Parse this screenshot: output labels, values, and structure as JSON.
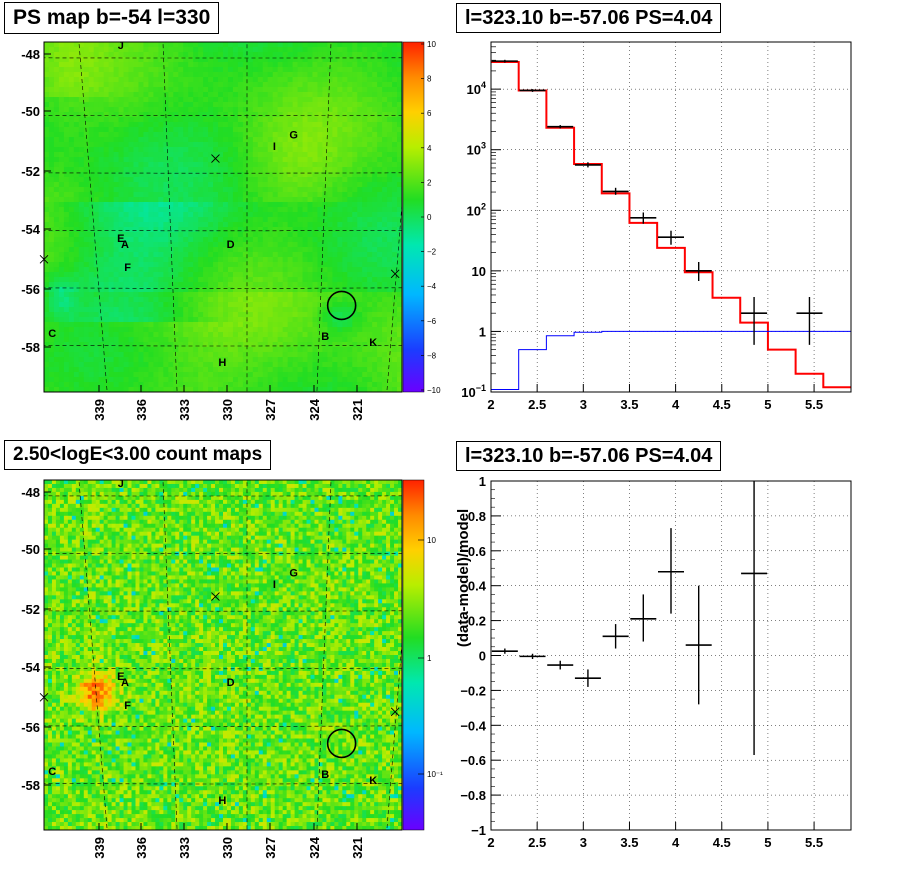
{
  "titles": {
    "map_top": "PS map b=-54 l=330",
    "spectrum_top": "l=323.10 b=-57.06 PS=4.04",
    "map_bottom": "2.50<logE<3.00 count maps",
    "spectrum_bottom": "l=323.10 b=-57.06 PS=4.04"
  },
  "maps": {
    "lat_ticks": [
      "-48",
      "-50",
      "-52",
      "-54",
      "-56",
      "-58"
    ],
    "lon_ticks": [
      "339",
      "336",
      "333",
      "330",
      "327",
      "324",
      "321"
    ],
    "source_labels": [
      {
        "name": "J",
        "l": 339.2,
        "b": -47.9
      },
      {
        "name": "I",
        "l": 328.0,
        "b": -51.4
      },
      {
        "name": "G",
        "l": 326.6,
        "b": -51.0
      },
      {
        "name": "E",
        "l": 339.2,
        "b": -54.6
      },
      {
        "name": "A",
        "l": 338.9,
        "b": -54.8
      },
      {
        "name": "D",
        "l": 331.2,
        "b": -54.8
      },
      {
        "name": "F",
        "l": 338.7,
        "b": -55.6
      },
      {
        "name": "C",
        "l": 344.2,
        "b": -57.9
      },
      {
        "name": "B",
        "l": 324.3,
        "b": -58.0
      },
      {
        "name": "K",
        "l": 320.8,
        "b": -58.2
      },
      {
        "name": "H",
        "l": 331.8,
        "b": -58.9
      }
    ],
    "crosses": [
      {
        "l": 332.3,
        "b": -51.7
      },
      {
        "l": 344.8,
        "b": -55.2
      },
      {
        "l": 319.2,
        "b": -55.7
      }
    ],
    "circle": {
      "l": 323.1,
      "b": -56.8
    },
    "top_colorbar": {
      "scale": "linear",
      "range": [
        -10,
        10
      ],
      "ticks": [
        "10",
        "8",
        "6",
        "4",
        "2",
        "0",
        "−2",
        "−4",
        "−6",
        "−8",
        "−10"
      ]
    },
    "bottom_colorbar": {
      "scale": "log",
      "ticks": [
        "10",
        "1",
        "10⁻¹"
      ]
    }
  },
  "chart_data": [
    {
      "type": "line",
      "title": "l=323.10 b=-57.06 PS=4.04",
      "yscale": "log",
      "xlim": [
        2,
        5.9
      ],
      "ylim": [
        0.1,
        60000
      ],
      "x_ticks": [
        "2",
        "2.5",
        "3",
        "3.5",
        "4",
        "4.5",
        "5",
        "5.5"
      ],
      "y_ticks": [
        {
          "value": 0.1,
          "base": "10",
          "exp": "−1"
        },
        {
          "value": 1,
          "label": "1"
        },
        {
          "value": 10,
          "label": "10"
        },
        {
          "value": 100,
          "base": "10",
          "exp": "2"
        },
        {
          "value": 1000,
          "base": "10",
          "exp": "3"
        },
        {
          "value": 10000,
          "base": "10",
          "exp": "4"
        }
      ],
      "grid": true,
      "bin_edges": [
        2.0,
        2.3,
        2.6,
        2.9,
        3.2,
        3.5,
        3.8,
        4.1,
        4.4,
        4.7,
        5.0,
        5.3,
        5.6,
        5.9
      ],
      "series": [
        {
          "name": "",
          "kind": "model-red",
          "color": "#ff0000",
          "values": [
            28000,
            9500,
            2300,
            580,
            190,
            62,
            24,
            9.5,
            3.6,
            1.4,
            0.5,
            0.2,
            0.12
          ]
        },
        {
          "name": "",
          "kind": "model-blue",
          "color": "#0000ff",
          "values": [
            0.11,
            0.5,
            0.85,
            0.97,
            1.0,
            1.0,
            1.0,
            1.0,
            1.0,
            1.0,
            1.0,
            1.0,
            1.0
          ]
        },
        {
          "name": "",
          "kind": "data",
          "color": "#000000",
          "points": [
            {
              "x": 2.15,
              "y": 29000,
              "lo": 27500,
              "hi": 30500
            },
            {
              "x": 2.45,
              "y": 9500,
              "lo": 9000,
              "hi": 10000
            },
            {
              "x": 2.75,
              "y": 2400,
              "lo": 2250,
              "hi": 2550
            },
            {
              "x": 3.05,
              "y": 560,
              "lo": 510,
              "hi": 620
            },
            {
              "x": 3.35,
              "y": 205,
              "lo": 180,
              "hi": 235
            },
            {
              "x": 3.65,
              "y": 75,
              "lo": 60,
              "hi": 92
            },
            {
              "x": 3.95,
              "y": 36,
              "lo": 27,
              "hi": 46
            },
            {
              "x": 4.25,
              "y": 10,
              "lo": 6.8,
              "hi": 14
            },
            {
              "x": 4.85,
              "y": 2,
              "lo": 0.6,
              "hi": 3.7
            },
            {
              "x": 5.45,
              "y": 2,
              "lo": 0.6,
              "hi": 3.7
            }
          ]
        }
      ]
    },
    {
      "type": "scatter",
      "title": "l=323.10 b=-57.06 PS=4.04",
      "xlabel": "",
      "ylabel": "(data-model)/model",
      "xlim": [
        2,
        5.9
      ],
      "ylim": [
        -1,
        1
      ],
      "x_ticks": [
        "2",
        "2.5",
        "3",
        "3.5",
        "4",
        "4.5",
        "5",
        "5.5"
      ],
      "y_ticks": [
        "1",
        "0.8",
        "0.6",
        "0.4",
        "0.2",
        "0",
        "−0.2",
        "−0.4",
        "−0.6",
        "−0.8",
        "−1"
      ],
      "grid": true,
      "points": [
        {
          "x": 2.15,
          "y": 0.025,
          "lo": 0.01,
          "hi": 0.04
        },
        {
          "x": 2.45,
          "y": -0.005,
          "lo": -0.02,
          "hi": 0.01
        },
        {
          "x": 2.75,
          "y": -0.055,
          "lo": -0.08,
          "hi": -0.03
        },
        {
          "x": 3.05,
          "y": -0.13,
          "lo": -0.18,
          "hi": -0.08
        },
        {
          "x": 3.35,
          "y": 0.11,
          "lo": 0.04,
          "hi": 0.18
        },
        {
          "x": 3.65,
          "y": 0.21,
          "lo": 0.08,
          "hi": 0.35
        },
        {
          "x": 3.95,
          "y": 0.48,
          "lo": 0.24,
          "hi": 0.73
        },
        {
          "x": 4.25,
          "y": 0.06,
          "lo": -0.28,
          "hi": 0.4
        },
        {
          "x": 4.85,
          "y": 0.47,
          "lo": -0.57,
          "hi": 1.0
        }
      ]
    }
  ]
}
